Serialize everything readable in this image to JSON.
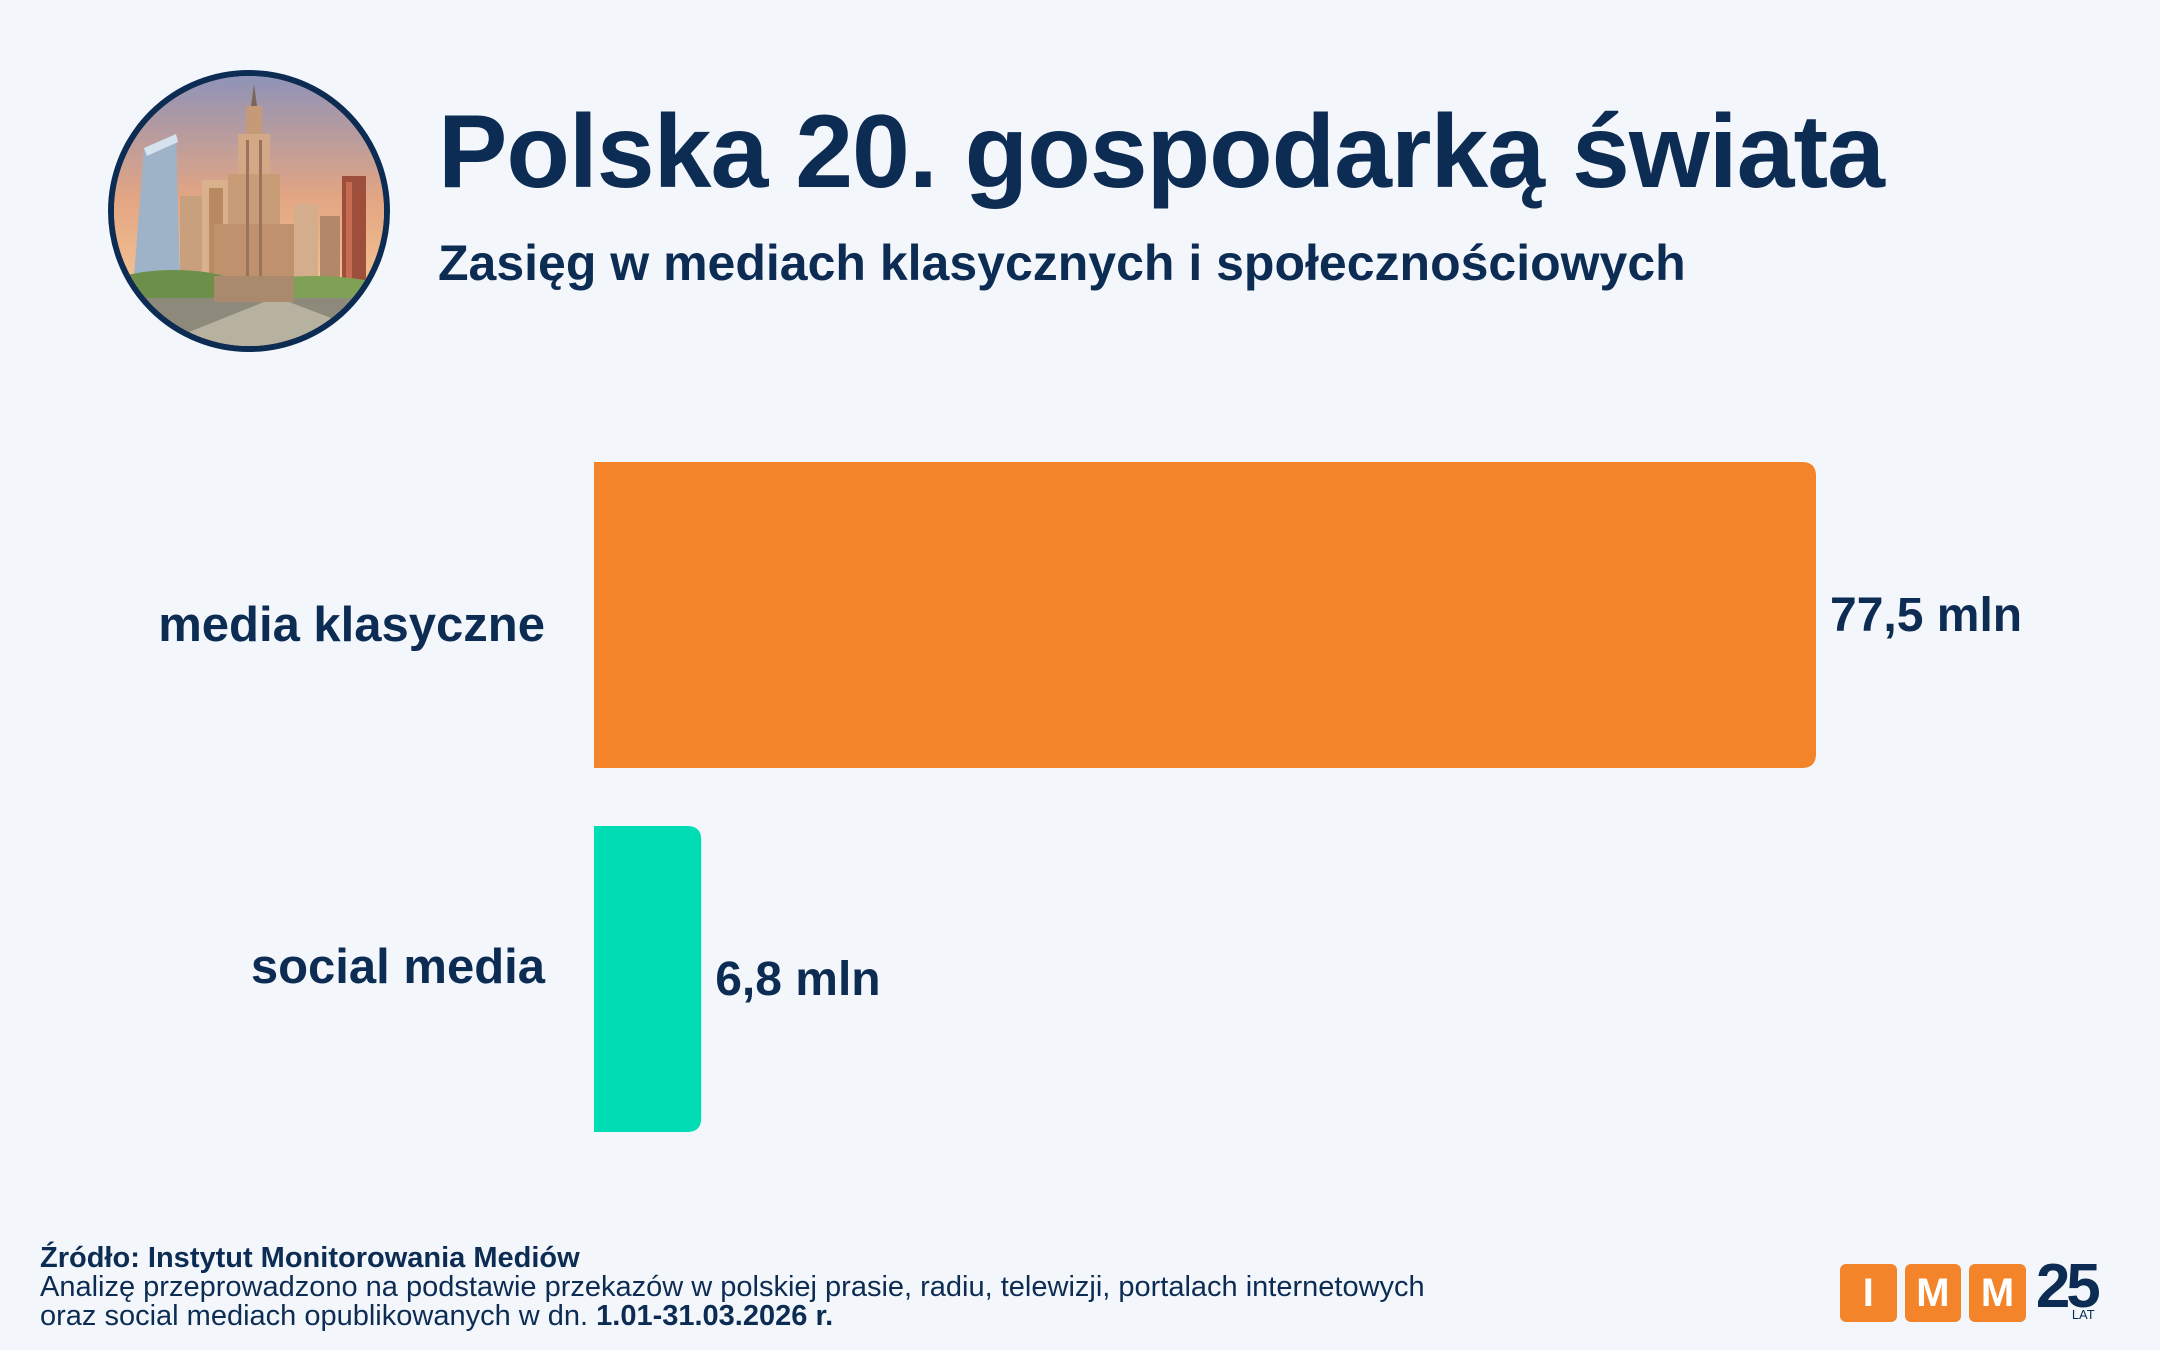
{
  "header": {
    "title": "Polska 20. gospodarką świata",
    "subtitle": "Zasięg w mediach klasycznych i społecznościowych",
    "photo_icon": "city-skyline-photo"
  },
  "chart_data": {
    "type": "bar",
    "orientation": "horizontal",
    "title": "Polska 20. gospodarką świata",
    "subtitle": "Zasięg w mediach klasycznych i społecznościowych",
    "categories": [
      "media klasyczne",
      "social media"
    ],
    "values": [
      77.5,
      6.8
    ],
    "value_labels": [
      "77,5 mln",
      "6,8 mln"
    ],
    "colors": [
      "#f4842a",
      "#00dcb3"
    ],
    "xlabel": "",
    "ylabel": "",
    "xlim": [
      0,
      77.5
    ],
    "grid": false,
    "legend": "none"
  },
  "footer": {
    "source": "Źródło: Instytut Monitorowania Mediów",
    "note_line1": "Analizę przeprowadzono na podstawie przekazów w polskiej prasie, radiu, telewizji, portalach internetowych",
    "note_line2_prefix": "oraz social mediach opublikowanych w dn. ",
    "note_line2_dates": "1.01-31.03.2026 r."
  },
  "logo": {
    "letters": [
      "I",
      "M",
      "M"
    ],
    "years": "25",
    "years_suffix": "LAT"
  },
  "colors": {
    "navy": "#0d2c54",
    "orange": "#f4842a",
    "teal": "#00dcb3",
    "background": "#f3f7fb"
  }
}
